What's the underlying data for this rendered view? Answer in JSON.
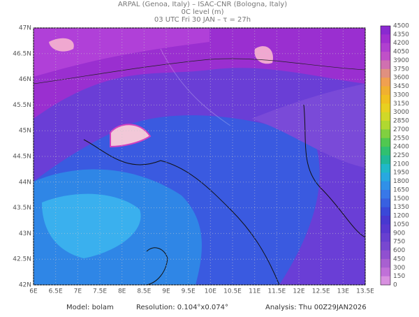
{
  "header": {
    "lines": [
      "ARPAL (Genoa, Italy)  –  ISAC-CNR (Bologna, Italy)",
      "0C level (m)",
      "03 UTC Fri 30 JAN  –  τ = 27h"
    ]
  },
  "map": {
    "lon_labels": [
      "6E",
      "6.5E",
      "7E",
      "7.5E",
      "8E",
      "8.5E",
      "9E",
      "9.5E",
      "10E",
      "10.5E",
      "11E",
      "11.5E",
      "12E",
      "12.5E",
      "13E",
      "13.5E"
    ],
    "lat_labels": [
      "47N",
      "46.5N",
      "46N",
      "45.5N",
      "45N",
      "44.5N",
      "44N",
      "43.5N",
      "43N",
      "42.5N",
      "42N"
    ]
  },
  "colorbar": {
    "levels": [
      "4500",
      "4350",
      "4200",
      "4050",
      "3900",
      "3750",
      "3600",
      "3450",
      "3300",
      "3150",
      "3000",
      "2850",
      "2700",
      "2550",
      "2400",
      "2250",
      "2100",
      "1950",
      "1800",
      "1650",
      "1500",
      "1350",
      "1200",
      "1050",
      "900",
      "750",
      "600",
      "450",
      "300",
      "150",
      "0"
    ]
  },
  "footer": {
    "model": "Model: bolam",
    "resolution": "Resolution: 0.104°x0.074°",
    "analysis": "Analysis: Thu 00Z29JAN2026"
  }
}
